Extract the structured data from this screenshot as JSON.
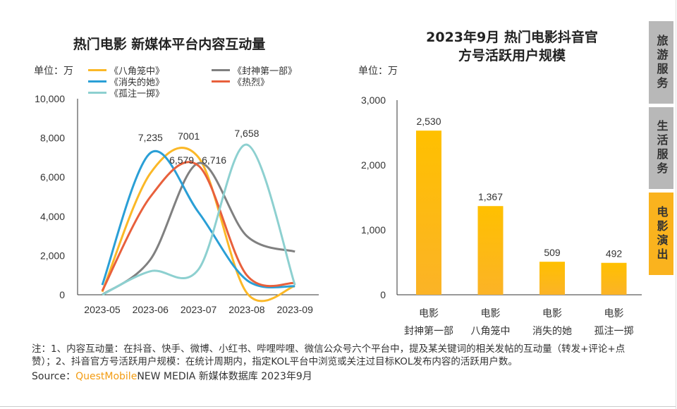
{
  "watermark": "QUESTMOBILE",
  "side_tabs": [
    {
      "label": "旅游服务",
      "active": false
    },
    {
      "label": "生活服务",
      "active": false
    },
    {
      "label": "电影演出",
      "active": true
    }
  ],
  "colors": {
    "accent": "#fab31e",
    "tab_inactive": "#b8b8b8",
    "bar": "#ffc000"
  },
  "chart_data": [
    {
      "type": "line",
      "title": "热门电影 新媒体平台内容互动量",
      "unit_label": "单位：万",
      "categories": [
        "2023-05",
        "2023-06",
        "2023-07",
        "2023-08",
        "2023-09"
      ],
      "ylim": [
        0,
        10000
      ],
      "yticks": [
        "0",
        "2,000",
        "4,000",
        "6,000",
        "8,000",
        "10,000"
      ],
      "legend_placement": "top",
      "grid": false,
      "series": [
        {
          "name": "《八角笼中》",
          "color": "#fbb827",
          "values": [
            150,
            6200,
            7001,
            100,
            450
          ],
          "labels": {
            "2": "7001"
          }
        },
        {
          "name": "《封神第一部》",
          "color": "#808080",
          "values": [
            0,
            1800,
            6716,
            3000,
            2200
          ],
          "labels": {
            "2": "6,716"
          }
        },
        {
          "name": "《消失的她》",
          "color": "#2a9fd6",
          "values": [
            500,
            7235,
            4200,
            750,
            430
          ],
          "labels": {
            "1": "7,235"
          }
        },
        {
          "name": "《热烈》",
          "color": "#e8603c",
          "values": [
            200,
            5000,
            6579,
            1000,
            600
          ],
          "labels": {
            "2": "6,579"
          }
        },
        {
          "name": "《孤注一掷》",
          "color": "#8dd0d0",
          "values": [
            0,
            1200,
            1300,
            7658,
            500
          ],
          "labels": {
            "3": "7,658"
          }
        }
      ]
    },
    {
      "type": "bar",
      "title": "2023年9月 热门电影抖音官方号活跃用户规模",
      "title_lines": [
        "2023年9月 热门电影抖音官方号",
        "活跃用户规模"
      ],
      "unit_label": "单位：万",
      "categories": [
        [
          "电影",
          "封神第一部"
        ],
        [
          "电影",
          "八角笼中"
        ],
        [
          "电影",
          "消失的她"
        ],
        [
          "电影",
          "孤注一掷"
        ]
      ],
      "values": [
        2530,
        1367,
        509,
        492
      ],
      "value_labels": [
        "2,530",
        "1,367",
        "509",
        "492"
      ],
      "ylim": [
        0,
        3000
      ],
      "yticks": [
        "0",
        "1,000",
        "2,000",
        "3,000"
      ],
      "grid": false
    }
  ],
  "note": "注：1、内容互动量：在抖音、快手、微博、小红书、哔哩哔哩、微信公众号六个平台中，提及某关键词的相关发帖的互动量（转发+评论+点赞）；2、抖音官方号活跃用户规模：在统计周期内，指定KOL平台中浏览或关注过目标KOL发布内容的活跃用户数。",
  "source": {
    "prefix": "Source：",
    "brand": "QuestMobile",
    "rest": "NEW MEDIA 新媒体数据库 2023年9月"
  }
}
